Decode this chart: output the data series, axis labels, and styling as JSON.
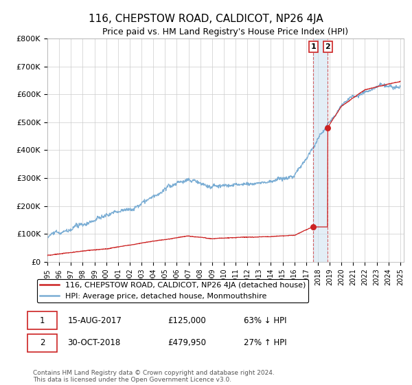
{
  "title": "116, CHEPSTOW ROAD, CALDICOT, NP26 4JA",
  "subtitle": "Price paid vs. HM Land Registry's House Price Index (HPI)",
  "y_ticks": [
    0,
    100000,
    200000,
    300000,
    400000,
    500000,
    600000,
    700000,
    800000
  ],
  "y_tick_labels": [
    "£0",
    "£100K",
    "£200K",
    "£300K",
    "£400K",
    "£500K",
    "£600K",
    "£700K",
    "£800K"
  ],
  "hpi_color": "#7aadd4",
  "price_color": "#cc2222",
  "transaction1_year": 2017.62,
  "transaction1_price": 125000,
  "transaction2_year": 2018.83,
  "transaction2_price": 479950,
  "legend_property": "116, CHEPSTOW ROAD, CALDICOT, NP26 4JA (detached house)",
  "legend_hpi": "HPI: Average price, detached house, Monmouthshire",
  "table_row1": [
    "1",
    "15-AUG-2017",
    "£125,000",
    "63% ↓ HPI"
  ],
  "table_row2": [
    "2",
    "30-OCT-2018",
    "£479,950",
    "27% ↑ HPI"
  ],
  "footnote": "Contains HM Land Registry data © Crown copyright and database right 2024.\nThis data is licensed under the Open Government Licence v3.0.",
  "grid_color": "#cccccc",
  "shade_color": "#cce0f0"
}
